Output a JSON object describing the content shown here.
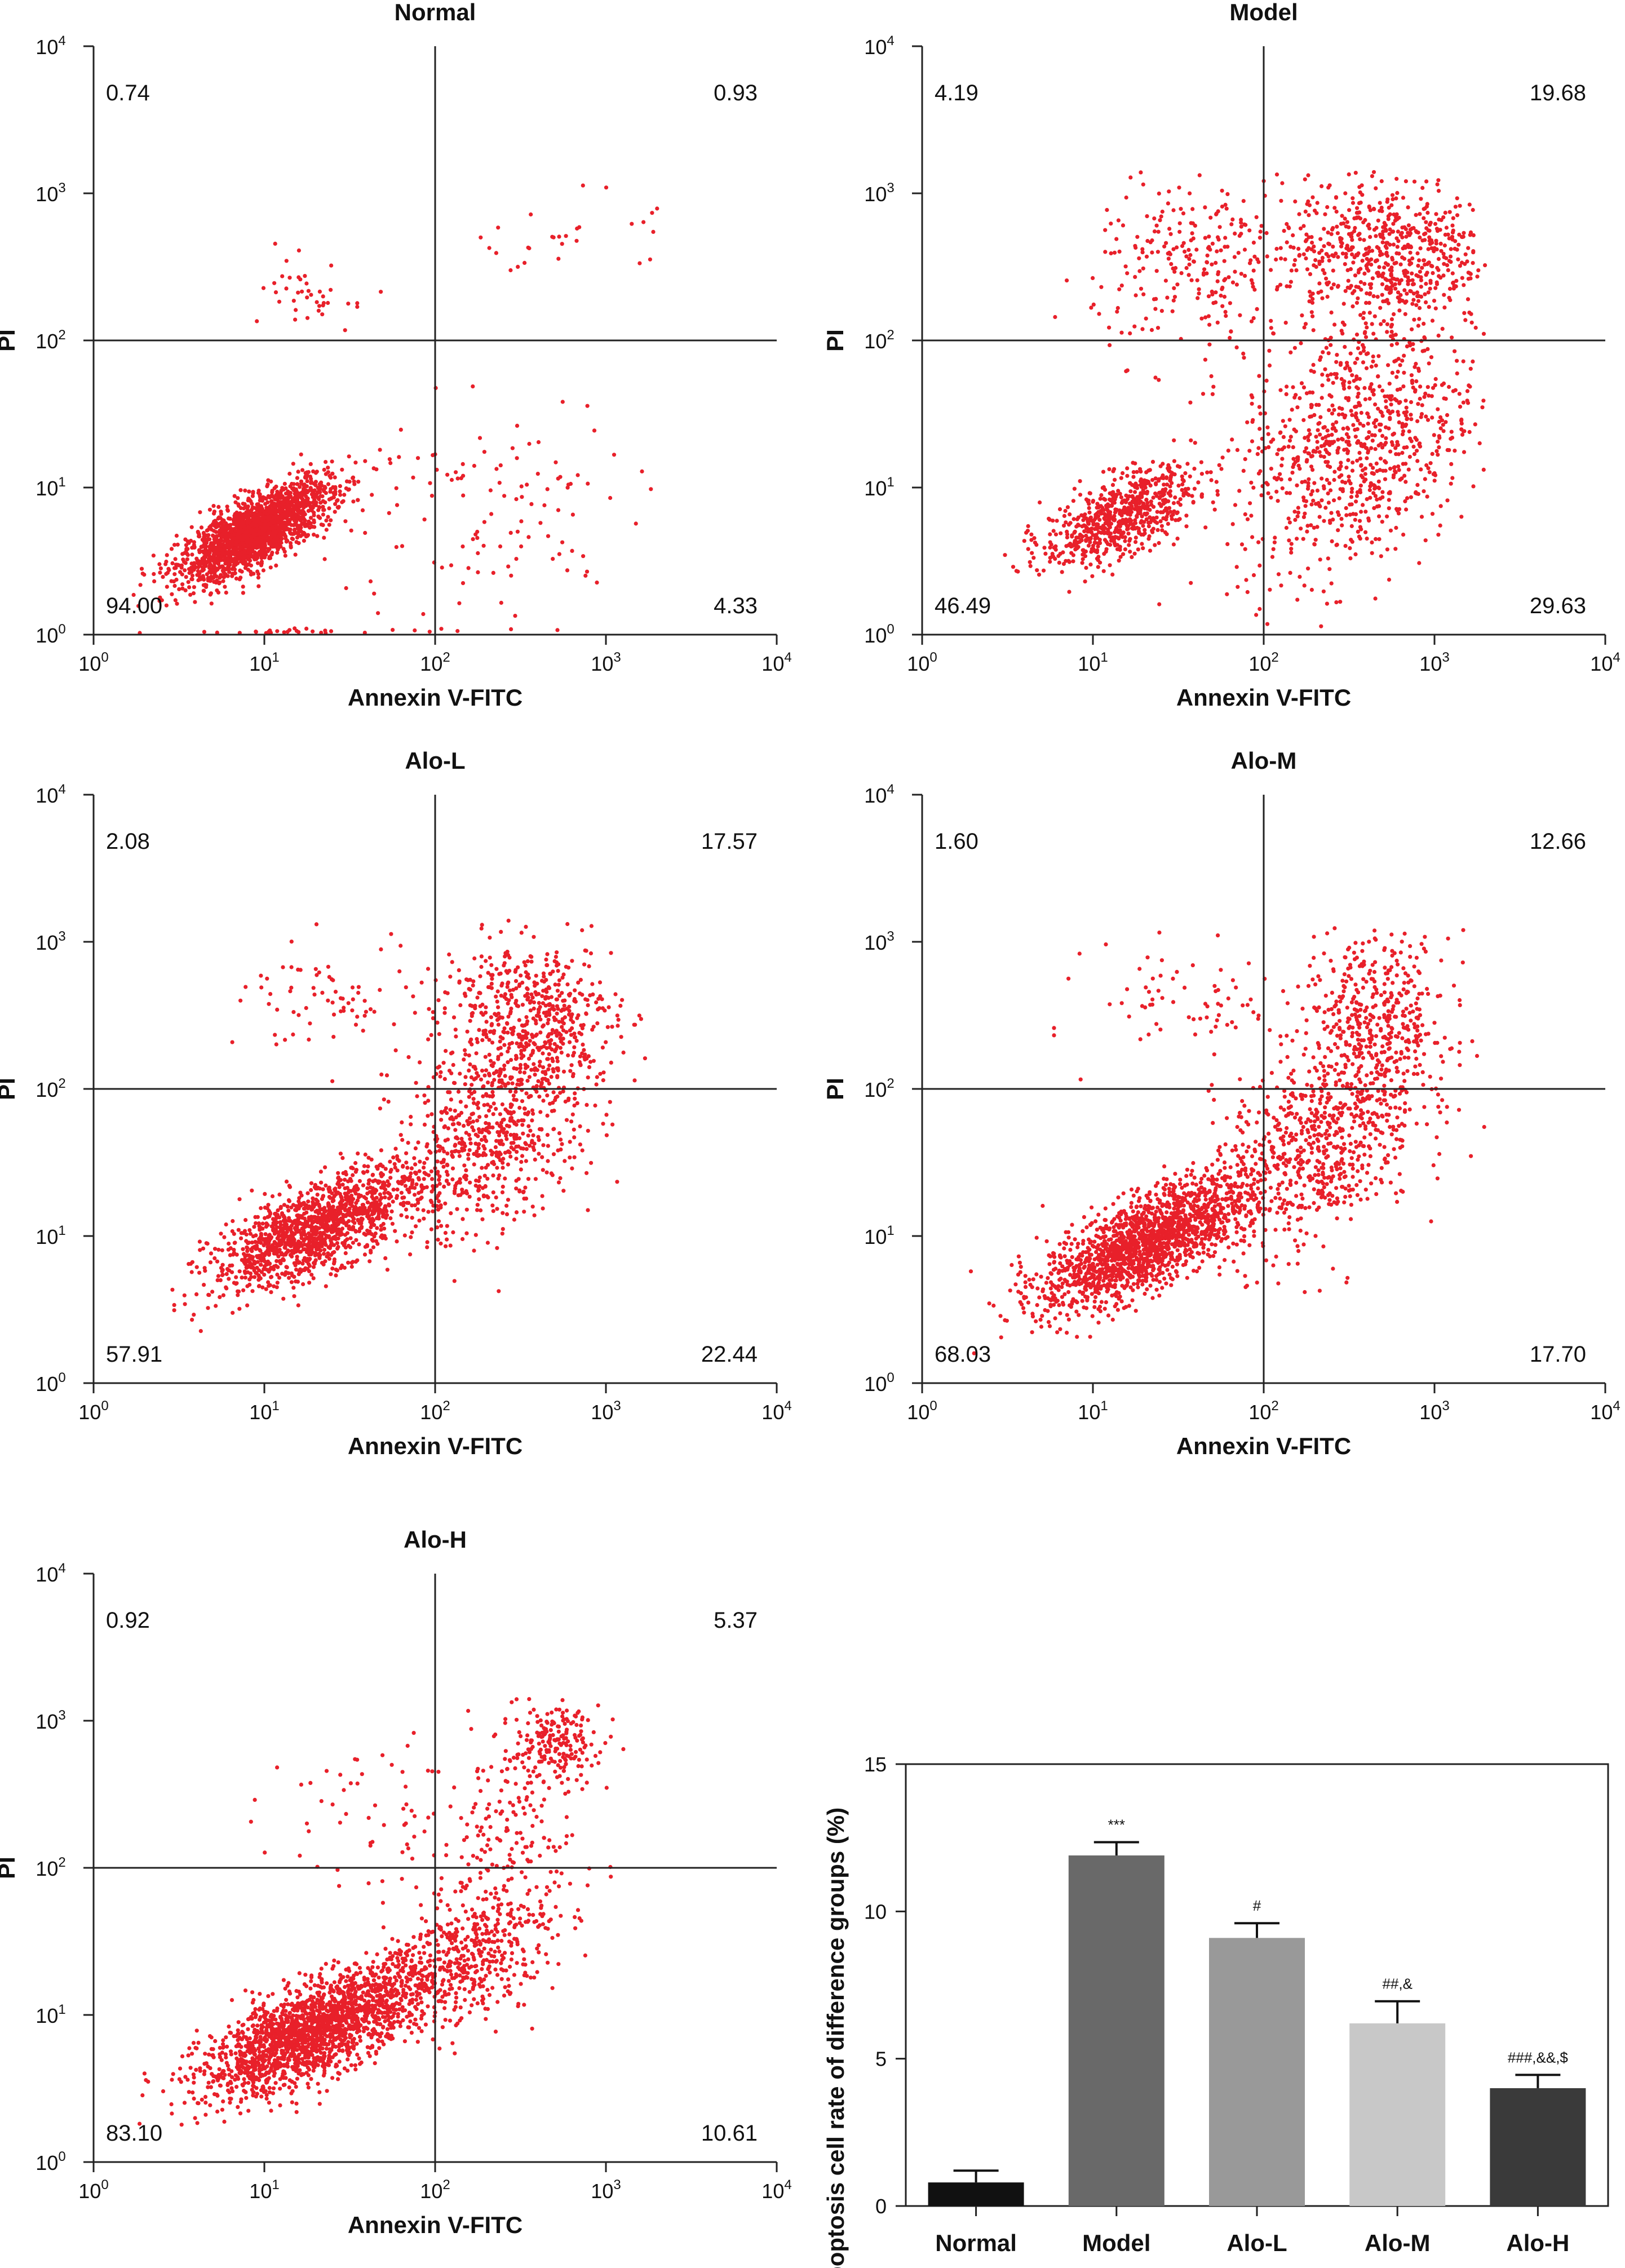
{
  "chart_data": [
    {
      "type": "scatter",
      "title": "Normal",
      "xlabel": "Annexin V-FITC",
      "ylabel": "PI",
      "xscale": "log",
      "yscale": "log",
      "xlim": [
        1,
        10000
      ],
      "ylim": [
        1,
        10000
      ],
      "xticks": [
        {
          "base": "10",
          "exp": "0"
        },
        {
          "base": "10",
          "exp": "1"
        },
        {
          "base": "10",
          "exp": "2"
        },
        {
          "base": "10",
          "exp": "3"
        },
        {
          "base": "10",
          "exp": "4"
        }
      ],
      "yticks": [
        {
          "base": "10",
          "exp": "0"
        },
        {
          "base": "10",
          "exp": "1"
        },
        {
          "base": "10",
          "exp": "2"
        },
        {
          "base": "10",
          "exp": "3"
        },
        {
          "base": "10",
          "exp": "4"
        }
      ],
      "gate": [
        100,
        100
      ],
      "point_color": "#e8202a",
      "quadrants": {
        "upper_left": "0.74",
        "upper_right": "0.93",
        "lower_left": "94.00",
        "lower_right": "4.33"
      }
    },
    {
      "type": "scatter",
      "title": "Model",
      "xlabel": "Annexin V-FITC",
      "ylabel": "PI",
      "xscale": "log",
      "yscale": "log",
      "xlim": [
        1,
        10000
      ],
      "ylim": [
        1,
        10000
      ],
      "xticks": [
        {
          "base": "10",
          "exp": "0"
        },
        {
          "base": "10",
          "exp": "1"
        },
        {
          "base": "10",
          "exp": "2"
        },
        {
          "base": "10",
          "exp": "3"
        },
        {
          "base": "10",
          "exp": "4"
        }
      ],
      "yticks": [
        {
          "base": "10",
          "exp": "0"
        },
        {
          "base": "10",
          "exp": "1"
        },
        {
          "base": "10",
          "exp": "2"
        },
        {
          "base": "10",
          "exp": "3"
        },
        {
          "base": "10",
          "exp": "4"
        }
      ],
      "gate": [
        100,
        100
      ],
      "point_color": "#e8202a",
      "quadrants": {
        "upper_left": "4.19",
        "upper_right": "19.68",
        "lower_left": "46.49",
        "lower_right": "29.63"
      }
    },
    {
      "type": "scatter",
      "title": "Alo-L",
      "xlabel": "Annexin V-FITC",
      "ylabel": "PI",
      "xscale": "log",
      "yscale": "log",
      "xlim": [
        1,
        10000
      ],
      "ylim": [
        1,
        10000
      ],
      "xticks": [
        {
          "base": "10",
          "exp": "0"
        },
        {
          "base": "10",
          "exp": "1"
        },
        {
          "base": "10",
          "exp": "2"
        },
        {
          "base": "10",
          "exp": "3"
        },
        {
          "base": "10",
          "exp": "4"
        }
      ],
      "yticks": [
        {
          "base": "10",
          "exp": "0"
        },
        {
          "base": "10",
          "exp": "1"
        },
        {
          "base": "10",
          "exp": "2"
        },
        {
          "base": "10",
          "exp": "3"
        },
        {
          "base": "10",
          "exp": "4"
        }
      ],
      "gate": [
        100,
        100
      ],
      "point_color": "#e8202a",
      "quadrants": {
        "upper_left": "2.08",
        "upper_right": "17.57",
        "lower_left": "57.91",
        "lower_right": "22.44"
      }
    },
    {
      "type": "scatter",
      "title": "Alo-M",
      "xlabel": "Annexin V-FITC",
      "ylabel": "PI",
      "xscale": "log",
      "yscale": "log",
      "xlim": [
        1,
        10000
      ],
      "ylim": [
        1,
        10000
      ],
      "xticks": [
        {
          "base": "10",
          "exp": "0"
        },
        {
          "base": "10",
          "exp": "1"
        },
        {
          "base": "10",
          "exp": "2"
        },
        {
          "base": "10",
          "exp": "3"
        },
        {
          "base": "10",
          "exp": "4"
        }
      ],
      "yticks": [
        {
          "base": "10",
          "exp": "0"
        },
        {
          "base": "10",
          "exp": "1"
        },
        {
          "base": "10",
          "exp": "2"
        },
        {
          "base": "10",
          "exp": "3"
        },
        {
          "base": "10",
          "exp": "4"
        }
      ],
      "gate": [
        100,
        100
      ],
      "point_color": "#e8202a",
      "quadrants": {
        "upper_left": "1.60",
        "upper_right": "12.66",
        "lower_left": "68.03",
        "lower_right": "17.70"
      }
    },
    {
      "type": "scatter",
      "title": "Alo-H",
      "xlabel": "Annexin V-FITC",
      "ylabel": "PI",
      "xscale": "log",
      "yscale": "log",
      "xlim": [
        1,
        10000
      ],
      "ylim": [
        1,
        10000
      ],
      "xticks": [
        {
          "base": "10",
          "exp": "0"
        },
        {
          "base": "10",
          "exp": "1"
        },
        {
          "base": "10",
          "exp": "2"
        },
        {
          "base": "10",
          "exp": "3"
        },
        {
          "base": "10",
          "exp": "4"
        }
      ],
      "yticks": [
        {
          "base": "10",
          "exp": "0"
        },
        {
          "base": "10",
          "exp": "1"
        },
        {
          "base": "10",
          "exp": "2"
        },
        {
          "base": "10",
          "exp": "3"
        },
        {
          "base": "10",
          "exp": "4"
        }
      ],
      "gate": [
        100,
        100
      ],
      "point_color": "#e8202a",
      "quadrants": {
        "upper_left": "0.92",
        "upper_right": "5.37",
        "lower_left": "83.10",
        "lower_right": "10.61"
      }
    },
    {
      "type": "bar",
      "title": "",
      "xlabel": "",
      "ylabel": "Apoptosis cell rate of difference groups (%)",
      "ylim": [
        0,
        15
      ],
      "yticks": [
        0,
        5,
        10,
        15
      ],
      "categories": [
        "Normal",
        "Model",
        "Alo-L",
        "Alo-M",
        "Alo-H"
      ],
      "values": [
        0.8,
        11.9,
        9.1,
        6.2,
        4.0
      ],
      "errors": [
        0.4,
        0.45,
        0.5,
        0.75,
        0.45
      ],
      "annotations": [
        "",
        "***",
        "#",
        "##,&",
        "###,&&,$"
      ],
      "colors": [
        "#111111",
        "#696969",
        "#999999",
        "#c8c8c8",
        "#3a3a3a"
      ]
    }
  ]
}
